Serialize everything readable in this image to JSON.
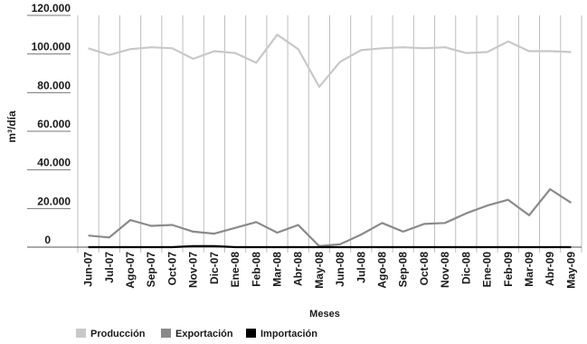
{
  "chart_data": {
    "type": "line",
    "xlabel": "Meses",
    "ylabel": "m³/día",
    "ylim": [
      0,
      120000
    ],
    "yticks": [
      0,
      20000,
      40000,
      60000,
      80000,
      100000,
      120000
    ],
    "ytick_labels": [
      "0",
      "20.000",
      "40.000",
      "60.000",
      "80.000",
      "100.000",
      "120.000"
    ],
    "grid": "vertical",
    "legend_position": "bottom-left",
    "categories": [
      "Jun-07",
      "Jul-07",
      "Ago-07",
      "Sep-07",
      "Oct-07",
      "Nov-07",
      "Dic-07",
      "Ene-08",
      "Feb-08",
      "Mar-08",
      "Abr-08",
      "May-08",
      "Jun-08",
      "Jul-08",
      "Ago-08",
      "Sep-08",
      "Oct-08",
      "Nov-08",
      "Dic-08",
      "Ene-00",
      "Feb-09",
      "Mar-09",
      "Abr-09",
      "May-09"
    ],
    "series": [
      {
        "name": "Producción",
        "color": "#c8c8c8",
        "values": [
          103000,
          99500,
          102500,
          103500,
          103000,
          97500,
          101500,
          100500,
          95500,
          110000,
          102500,
          83000,
          96000,
          102000,
          103000,
          103500,
          103000,
          103500,
          100500,
          101000,
          106500,
          101500,
          101500,
          101000
        ]
      },
      {
        "name": "Exportación",
        "color": "#8a8a8a",
        "values": [
          6000,
          5000,
          14000,
          11000,
          11500,
          8000,
          7000,
          10000,
          13000,
          7500,
          11500,
          500,
          1500,
          6500,
          12500,
          8000,
          12000,
          12500,
          17500,
          21500,
          24500,
          16500,
          30000,
          23000
        ]
      },
      {
        "name": "Importación",
        "color": "#000000",
        "values": [
          0,
          0,
          0,
          0,
          0,
          500,
          500,
          0,
          0,
          0,
          0,
          0,
          0,
          0,
          0,
          0,
          0,
          0,
          0,
          0,
          0,
          0,
          0,
          0
        ]
      }
    ]
  }
}
